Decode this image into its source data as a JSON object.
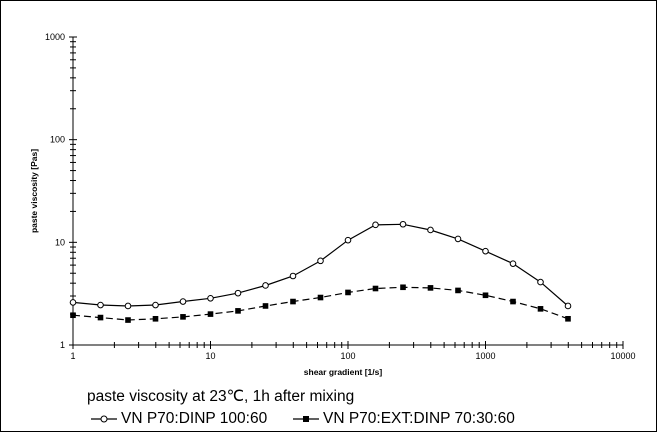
{
  "chart_data": {
    "type": "line",
    "x_scale": "log",
    "y_scale": "log",
    "xlim": [
      1,
      10000
    ],
    "ylim": [
      1,
      1000
    ],
    "x_ticks": [
      "1",
      "10",
      "100",
      "1000",
      "10000"
    ],
    "y_ticks": [
      "1",
      "10",
      "100",
      "1000"
    ],
    "xlabel": "shear gradient  [1/s]",
    "ylabel": "paste viscosity  [Pas]",
    "grid": false,
    "legend_position": "bottom",
    "caption": "paste viscosity at 23℃, 1h after mixing",
    "series": [
      {
        "name": "VN P70:DINP  100:60",
        "marker": "open-circle",
        "line_style": "solid",
        "color": "#000000",
        "x": [
          1,
          1.585,
          2.512,
          3.981,
          6.31,
          10,
          15.85,
          25.12,
          39.81,
          63.1,
          100,
          158.5,
          251.2,
          398.1,
          631,
          1000,
          1585,
          2512,
          3981
        ],
        "y": [
          2.6,
          2.45,
          2.4,
          2.45,
          2.65,
          2.85,
          3.2,
          3.8,
          4.7,
          6.6,
          10.5,
          14.8,
          15.0,
          13.2,
          10.8,
          8.2,
          6.2,
          4.1,
          2.4
        ]
      },
      {
        "name": "VN P70:EXT:DINP  70:30:60",
        "marker": "filled-square",
        "line_style": "dashed",
        "color": "#000000",
        "x": [
          1,
          1.585,
          2.512,
          3.981,
          6.31,
          10,
          15.85,
          25.12,
          39.81,
          63.1,
          100,
          158.5,
          251.2,
          398.1,
          631,
          1000,
          1585,
          2512,
          3981
        ],
        "y": [
          1.95,
          1.85,
          1.75,
          1.8,
          1.88,
          2.0,
          2.15,
          2.4,
          2.65,
          2.9,
          3.25,
          3.55,
          3.65,
          3.6,
          3.4,
          3.05,
          2.65,
          2.25,
          1.8
        ]
      }
    ]
  }
}
